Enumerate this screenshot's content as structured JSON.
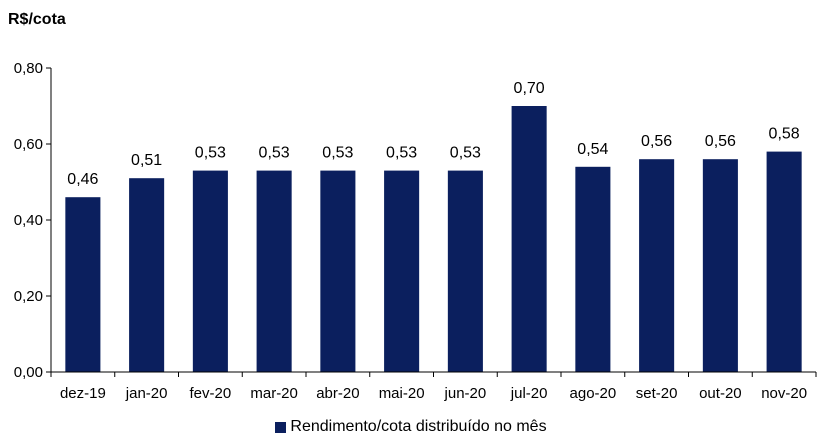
{
  "chart_data": {
    "type": "bar",
    "title": "",
    "ylabel": "R$/cota",
    "xlabel": "",
    "categories": [
      "dez-19",
      "jan-20",
      "fev-20",
      "mar-20",
      "abr-20",
      "mai-20",
      "jun-20",
      "jul-20",
      "ago-20",
      "set-20",
      "out-20",
      "nov-20"
    ],
    "series": [
      {
        "name": "Rendimento/cota distribuído no mês",
        "values": [
          0.46,
          0.51,
          0.53,
          0.53,
          0.53,
          0.53,
          0.53,
          0.7,
          0.54,
          0.56,
          0.56,
          0.58
        ],
        "data_labels": [
          "0,46",
          "0,51",
          "0,53",
          "0,53",
          "0,53",
          "0,53",
          "0,53",
          "0,70",
          "0,54",
          "0,56",
          "0,56",
          "0,58"
        ]
      }
    ],
    "ylim": [
      0,
      0.8
    ],
    "yticks": [
      0,
      0.2,
      0.4,
      0.6,
      0.8
    ],
    "ytick_labels": [
      "0,00",
      "0,20",
      "0,40",
      "0,60",
      "0,80"
    ],
    "grid": false,
    "legend_position": "bottom",
    "colors": {
      "bar": "#0b1f5e",
      "axis": "#000000",
      "text": "#000000"
    }
  }
}
